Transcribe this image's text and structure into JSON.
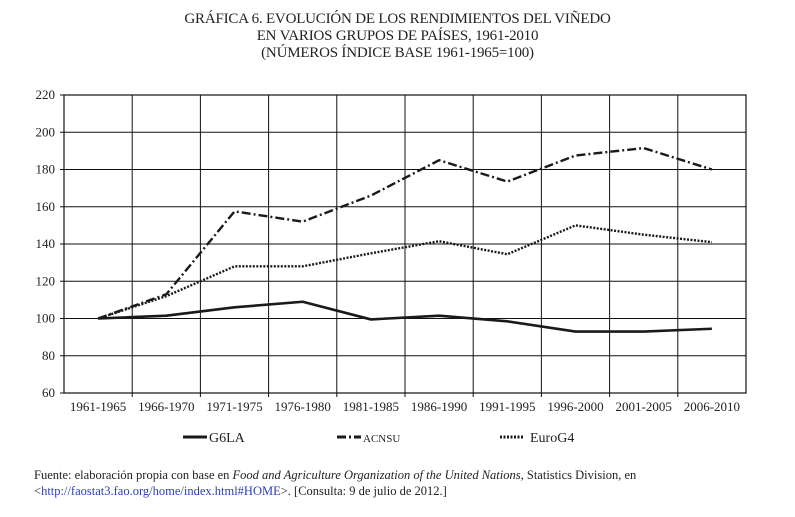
{
  "title": {
    "line1": "GRÁFICA 6. EVOLUCIÓN DE LOS RENDIMIENTOS DEL VIÑEDO",
    "line2": "EN VARIOS GRUPOS DE PAÍSES, 1961-2010",
    "line3": "(NÚMEROS ÍNDICE BASE 1961-1965=100)"
  },
  "chart_data": {
    "type": "line",
    "title": "GRÁFICA 6. EVOLUCIÓN DE LOS RENDIMIENTOS DEL VIÑEDO EN VARIOS GRUPOS DE PAÍSES, 1961-2010 (NÚMEROS ÍNDICE BASE 1961-1965=100)",
    "xlabel": "",
    "ylabel": "",
    "categories": [
      "1961-1965",
      "1966-1970",
      "1971-1975",
      "1976-1980",
      "1981-1985",
      "1986-1990",
      "1991-1995",
      "1996-2000",
      "2001-2005",
      "2006-2010"
    ],
    "yticks": [
      "60",
      "80",
      "100",
      "120",
      "140",
      "160",
      "180",
      "200",
      "220"
    ],
    "ylim": [
      60,
      220
    ],
    "grid": true,
    "legend_position": "bottom",
    "series": [
      {
        "name": "G6LA",
        "style": "solid",
        "values": [
          100,
          101.5,
          106,
          109,
          99.5,
          101.5,
          98.5,
          93,
          93,
          94.5
        ]
      },
      {
        "name": "ACNSU",
        "style": "dash-dot",
        "values": [
          100,
          113,
          157.5,
          152,
          166,
          185,
          173.5,
          187.5,
          191.5,
          180
        ]
      },
      {
        "name": "EuroG4",
        "style": "dotted",
        "values": [
          100,
          112,
          128,
          128,
          135,
          141.5,
          134.5,
          150,
          145,
          141
        ]
      }
    ]
  },
  "footnote": {
    "prefix": "Fuente: elaboración propia con base en ",
    "italic": "Food and Agriculture Organization of the United Nations",
    "middle": ", Statistics Division, en <",
    "link": "http://faostat3.fao.org/home/index.html#HOME",
    "suffix": ">. [Consulta: 9 de julio de 2012.]"
  }
}
